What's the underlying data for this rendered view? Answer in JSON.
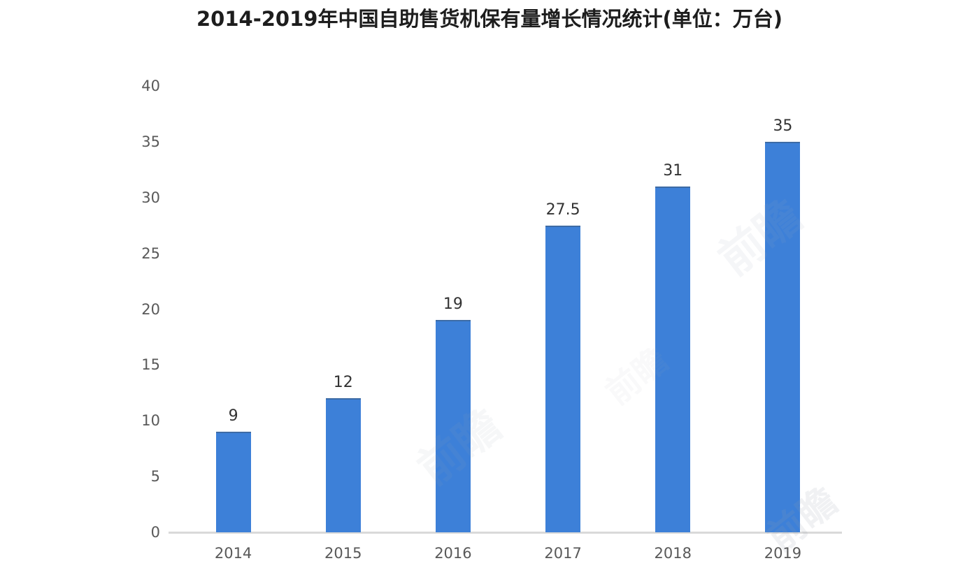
{
  "page": {
    "background": "#ffffff"
  },
  "chart_data": {
    "type": "bar",
    "title": "2014-2019年中国自助售货机保有量增长情况统计(单位：万台)",
    "categories": [
      "2014",
      "2015",
      "2016",
      "2017",
      "2018",
      "2019"
    ],
    "values": [
      9,
      12,
      19,
      27.5,
      31,
      35
    ],
    "value_labels": [
      "9",
      "12",
      "19",
      "27.5",
      "31",
      "35"
    ],
    "xlabel": "",
    "ylabel": "",
    "ylim": [
      0,
      40
    ],
    "yticks": [
      0,
      5,
      10,
      15,
      20,
      25,
      30,
      35,
      40
    ],
    "grid": false,
    "legend": null,
    "colors": {
      "bar": "#3d80d8",
      "axis_labels": "#595959",
      "value_labels": "#333333",
      "baseline": "#d9d9d9",
      "title": "#1d1d1d"
    }
  },
  "watermark": {
    "text": "前瞻"
  }
}
